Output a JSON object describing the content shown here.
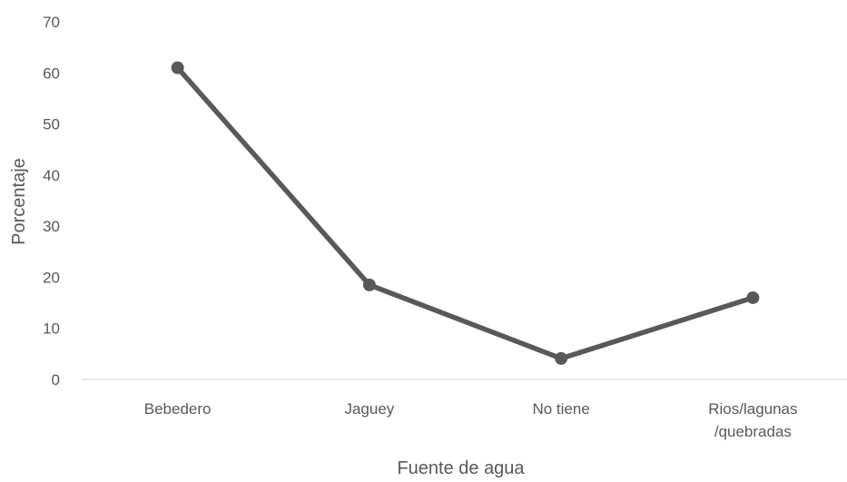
{
  "chart_data": {
    "type": "line",
    "title": "",
    "xlabel": "Fuente de agua",
    "ylabel": "Porcentaje",
    "categories": [
      [
        "Bebedero"
      ],
      [
        "Jaguey"
      ],
      [
        "No tiene"
      ],
      [
        "Rios/lagunas",
        "/quebradas"
      ]
    ],
    "series": [
      {
        "values": [
          61,
          18.5,
          4.1,
          16
        ]
      }
    ],
    "ylim": [
      0,
      70
    ],
    "yticks": [
      0,
      10,
      20,
      30,
      40,
      50,
      60,
      70
    ],
    "grid": false,
    "legend": "none",
    "colors": {
      "line": "#595959",
      "axis": "#d9d9d9",
      "text": "#595959"
    }
  }
}
